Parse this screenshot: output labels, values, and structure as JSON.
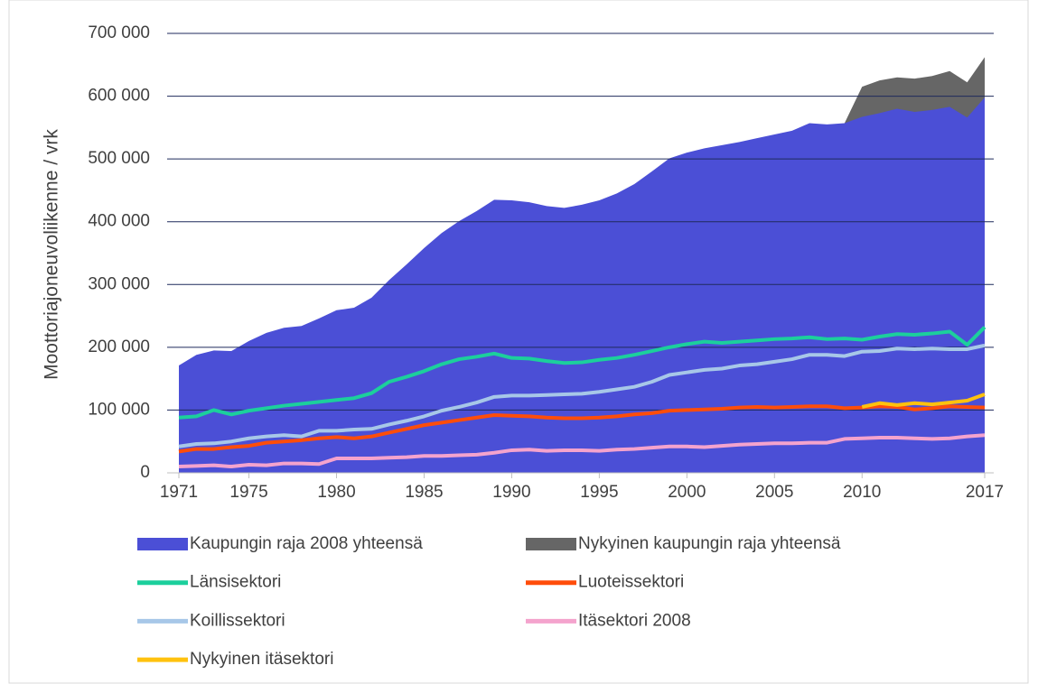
{
  "chart_data": {
    "type": "line",
    "ylabel": "Moottoriajoneuvoliikenne / vrk",
    "x": [
      1971,
      1972,
      1973,
      1974,
      1975,
      1976,
      1977,
      1978,
      1979,
      1980,
      1981,
      1982,
      1983,
      1984,
      1985,
      1986,
      1987,
      1988,
      1989,
      1990,
      1991,
      1992,
      1993,
      1994,
      1995,
      1996,
      1997,
      1998,
      1999,
      2000,
      2001,
      2002,
      2003,
      2004,
      2005,
      2006,
      2007,
      2008,
      2009,
      2010,
      2011,
      2012,
      2013,
      2014,
      2015,
      2016,
      2017
    ],
    "xlim": [
      1971,
      2017
    ],
    "xticks": [
      1971,
      1975,
      1980,
      1985,
      1990,
      1995,
      2000,
      2005,
      2010,
      2017
    ],
    "ylim": [
      0,
      700000
    ],
    "yticks": [
      0,
      {
        "value": 100000,
        "label": "100 000"
      },
      {
        "value": 200000,
        "label": "200 000"
      },
      {
        "value": 300000,
        "label": "300 000"
      },
      {
        "value": 400000,
        "label": "400 000"
      },
      {
        "value": 500000,
        "label": "500 000"
      },
      {
        "value": 600000,
        "label": "600 000"
      },
      {
        "value": 700000,
        "label": "700 000"
      }
    ],
    "grid": true,
    "series": [
      {
        "name": "Kaupungin raja 2008 yhteensä",
        "type": "area",
        "color": "#4b4fd6",
        "values": [
          171000,
          188000,
          195000,
          194000,
          210000,
          223000,
          231000,
          234000,
          246000,
          259000,
          263000,
          279000,
          307000,
          332000,
          358000,
          382000,
          401000,
          417000,
          435000,
          434000,
          431000,
          425000,
          422000,
          427000,
          434000,
          445000,
          460000,
          480000,
          501000,
          510000,
          517000,
          522000,
          527000,
          533000,
          539000,
          545000,
          557000,
          555000,
          557000,
          567000,
          573000,
          580000,
          575000,
          578000,
          583000,
          566000,
          598000
        ]
      },
      {
        "name": "Nykyinen kaupungin raja yhteensä",
        "type": "area",
        "color": "#666666",
        "values": [
          null,
          null,
          null,
          null,
          null,
          null,
          null,
          null,
          null,
          null,
          null,
          null,
          null,
          null,
          null,
          null,
          null,
          null,
          null,
          null,
          null,
          null,
          null,
          null,
          null,
          null,
          null,
          null,
          null,
          null,
          null,
          null,
          null,
          null,
          null,
          null,
          null,
          null,
          557000,
          615000,
          625000,
          630000,
          628000,
          632000,
          640000,
          622000,
          662000
        ]
      },
      {
        "name": "Länsisektori",
        "type": "line",
        "color": "#1ccf9c",
        "values": [
          88000,
          90000,
          100000,
          93000,
          99000,
          103000,
          107000,
          110000,
          113000,
          116000,
          119000,
          127000,
          145000,
          153000,
          162000,
          173000,
          181000,
          185000,
          190000,
          183000,
          182000,
          178000,
          175000,
          176000,
          180000,
          183000,
          188000,
          194000,
          200000,
          205000,
          209000,
          207000,
          209000,
          211000,
          213000,
          214000,
          216000,
          213000,
          214000,
          212000,
          217000,
          221000,
          220000,
          222000,
          225000,
          204000,
          232000
        ]
      },
      {
        "name": "Luoteissektori",
        "type": "line",
        "color": "#ff4d0a",
        "values": [
          34000,
          38000,
          38000,
          41000,
          43000,
          48000,
          50000,
          52000,
          55000,
          57000,
          55000,
          58000,
          64000,
          70000,
          76000,
          80000,
          84000,
          88000,
          92000,
          91000,
          90000,
          88000,
          87000,
          87000,
          88000,
          90000,
          93000,
          95000,
          99000,
          100000,
          101000,
          102000,
          104000,
          105000,
          104000,
          105000,
          106000,
          106000,
          103000,
          104000,
          106000,
          105000,
          101000,
          103000,
          106000,
          105000,
          104000
        ]
      },
      {
        "name": "Koillissektori",
        "type": "line",
        "color": "#a7c7e8",
        "values": [
          42000,
          46000,
          47000,
          50000,
          55000,
          58000,
          60000,
          58000,
          67000,
          67000,
          69000,
          70000,
          77000,
          83000,
          90000,
          99000,
          105000,
          112000,
          121000,
          123000,
          123000,
          124000,
          125000,
          126000,
          129000,
          133000,
          137000,
          145000,
          156000,
          160000,
          164000,
          166000,
          171000,
          173000,
          177000,
          181000,
          188000,
          188000,
          186000,
          193000,
          194000,
          198000,
          197000,
          198000,
          197000,
          197000,
          203000
        ]
      },
      {
        "name": "Itäsektori 2008",
        "type": "line",
        "color": "#f4a3cd",
        "values": [
          10000,
          11000,
          12000,
          10000,
          13000,
          12000,
          15000,
          15000,
          14000,
          23000,
          23000,
          23000,
          24000,
          25000,
          27000,
          27000,
          28000,
          29000,
          32000,
          36000,
          37000,
          35000,
          36000,
          36000,
          35000,
          37000,
          38000,
          40000,
          42000,
          42000,
          41000,
          43000,
          45000,
          46000,
          47000,
          47000,
          48000,
          48000,
          54000,
          55000,
          56000,
          56000,
          55000,
          54000,
          55000,
          58000,
          60000
        ]
      },
      {
        "name": "Nykyinen itäsektori",
        "type": "line",
        "color": "#ffc20e",
        "values": [
          null,
          null,
          null,
          null,
          null,
          null,
          null,
          null,
          null,
          null,
          null,
          null,
          null,
          null,
          null,
          null,
          null,
          null,
          null,
          null,
          null,
          null,
          null,
          null,
          null,
          null,
          null,
          null,
          null,
          null,
          null,
          null,
          null,
          null,
          null,
          null,
          null,
          null,
          null,
          105000,
          111000,
          108000,
          111000,
          109000,
          112000,
          115000,
          125000
        ]
      }
    ]
  }
}
